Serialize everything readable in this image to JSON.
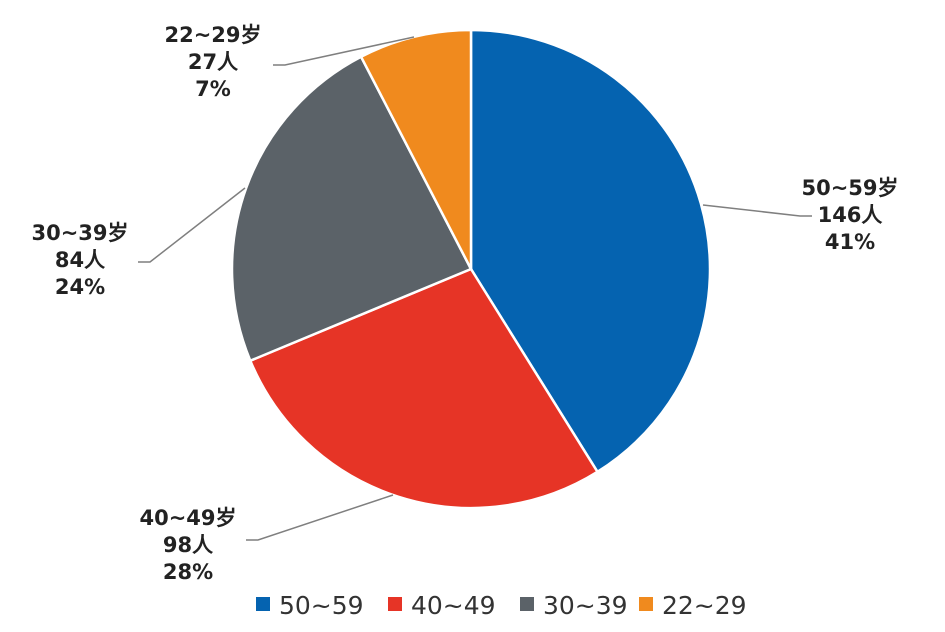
{
  "chart_data": {
    "type": "pie",
    "title": "",
    "series": [
      {
        "label": "50~59",
        "value": 146,
        "percent": 41,
        "color": "#0563b0",
        "label_lines": [
          "50~59岁",
          "146人",
          "41%"
        ]
      },
      {
        "label": "40~49",
        "value": 98,
        "percent": 28,
        "color": "#e63426",
        "label_lines": [
          "40~49岁",
          "98人",
          "28%"
        ]
      },
      {
        "label": "30~39",
        "value": 84,
        "percent": 24,
        "color": "#5b6268",
        "label_lines": [
          "30~39岁",
          "84人",
          "24%"
        ]
      },
      {
        "label": "22~29",
        "value": 27,
        "percent": 7,
        "color": "#f08a1e",
        "label_lines": [
          "22~29岁",
          "27人",
          "7%"
        ]
      }
    ],
    "start_angle": "12 o'clock",
    "direction": "clockwise",
    "legend": {
      "position": "bottom-center",
      "items": [
        "50~59",
        "40~49",
        "30~39",
        "22~29"
      ]
    }
  }
}
